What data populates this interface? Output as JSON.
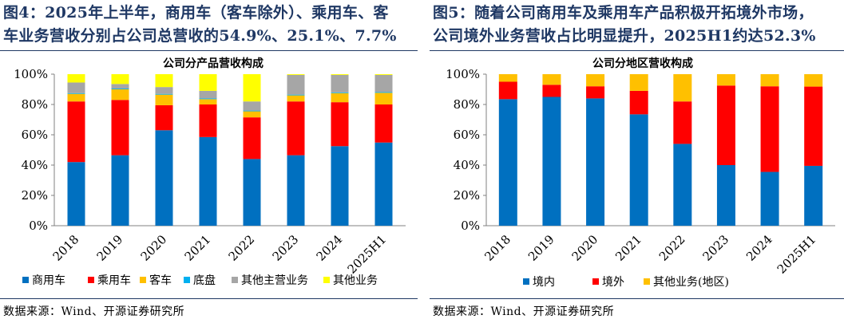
{
  "figures": [
    {
      "caption_line1": "图4：2025年上半年，商用车（客车除外）、乘用车、客",
      "caption_line2": "车业务营收分别占公司总营收的54.9%、25.1%、7.7%",
      "source": "数据来源：Wind、开源证券研究所"
    },
    {
      "caption_line1": "图5：随着公司商用车及乘用车产品积极开拓境外市场，",
      "caption_line2": "公司境外业务营收占比明显提升，2025H1约达52.3%",
      "source": "数据来源：Wind、开源证券研究所"
    }
  ],
  "chart_data": [
    {
      "type": "bar",
      "stacked": true,
      "title": "公司分产品营收构成",
      "xlabel": "",
      "ylabel": "",
      "ylim": [
        0,
        100
      ],
      "yticks": [
        "0%",
        "20%",
        "40%",
        "60%",
        "80%",
        "100%"
      ],
      "grid": false,
      "legend_position": "bottom",
      "categories": [
        "2018",
        "2019",
        "2020",
        "2021",
        "2022",
        "2023",
        "2024",
        "2025H1"
      ],
      "series": [
        {
          "name": "商用车",
          "color": "#0070c0",
          "values": [
            42,
            46.5,
            63,
            58.5,
            44,
            46.5,
            52.5,
            54.9
          ]
        },
        {
          "name": "乘用车",
          "color": "#ff0000",
          "values": [
            40,
            36.5,
            16.5,
            21.5,
            27.5,
            35.5,
            29,
            25.1
          ]
        },
        {
          "name": "客车",
          "color": "#ffc000",
          "values": [
            5,
            7,
            7,
            3.5,
            4,
            4,
            6,
            7.7
          ]
        },
        {
          "name": "底盘",
          "color": "#00b0f0",
          "values": [
            0.5,
            0.5,
            0.5,
            0.5,
            0.5,
            0.5,
            0.5,
            0.5
          ]
        },
        {
          "name": "其他主营业务",
          "color": "#a6a6a6",
          "values": [
            7,
            3,
            4.5,
            5,
            6,
            13,
            11.5,
            11.3
          ]
        },
        {
          "name": "其他业务",
          "color": "#ffff00",
          "values": [
            5.5,
            6.5,
            8.5,
            11,
            18,
            0.5,
            0.5,
            0.5
          ]
        }
      ]
    },
    {
      "type": "bar",
      "stacked": true,
      "title": "公司分地区营收构成",
      "xlabel": "",
      "ylabel": "",
      "ylim": [
        0,
        100
      ],
      "yticks": [
        "0%",
        "20%",
        "40%",
        "60%",
        "80%",
        "100%"
      ],
      "grid": false,
      "legend_position": "bottom",
      "categories": [
        "2018",
        "2019",
        "2020",
        "2021",
        "2022",
        "2023",
        "2024",
        "2025H1"
      ],
      "series": [
        {
          "name": "境内",
          "color": "#0070c0",
          "values": [
            83.5,
            85,
            84,
            73.5,
            54,
            40,
            35.5,
            39.5
          ]
        },
        {
          "name": "境外",
          "color": "#ff0000",
          "values": [
            11.5,
            8,
            8,
            15.5,
            28,
            52.5,
            56.5,
            52.3
          ]
        },
        {
          "name": "其他业务(地区)",
          "color": "#ffc000",
          "values": [
            5,
            7,
            8,
            11,
            18,
            7.5,
            8,
            8.2
          ]
        }
      ]
    }
  ]
}
